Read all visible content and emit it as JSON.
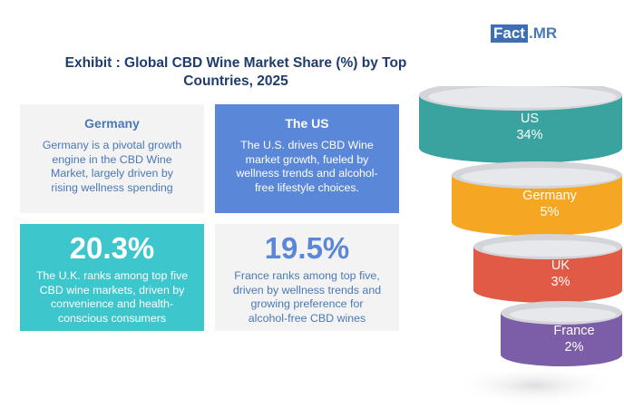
{
  "logo": {
    "part1": "Fact",
    "part2": ".MR"
  },
  "title_line1": "Exhibit : Global CBD Wine Market Share (%) by Top",
  "title_line2": "Countries, 2025",
  "cards": {
    "germany": {
      "heading": "Germany",
      "lines": [
        "Germany is a pivotal growth",
        "engine in the CBD Wine",
        "Market, largely driven by",
        "rising wellness spending"
      ]
    },
    "us": {
      "heading": "The US",
      "lines": [
        "The U.S. drives CBD Wine",
        "market growth, fueled by",
        "wellness trends and alcohol-",
        "free lifestyle choices."
      ]
    },
    "uk": {
      "value": "20.3%",
      "lines": [
        "The U.K. ranks among top five",
        "CBD wine markets, driven by",
        "convenience and health-",
        "conscious consumers"
      ]
    },
    "france": {
      "value": "19.5%",
      "lines": [
        "France ranks among top five,",
        "driven by wellness trends and",
        "growing preference for",
        "alcohol-free CBD wines"
      ]
    }
  },
  "chart_data": {
    "type": "funnel",
    "categories": [
      "US",
      "Germany",
      "UK",
      "France"
    ],
    "values": [
      34,
      5,
      3,
      2
    ],
    "value_labels": [
      "34%",
      "5%",
      "3%",
      "2%"
    ],
    "colors": [
      "#3aa39f",
      "#f5a623",
      "#e15a45",
      "#7b5ea7"
    ],
    "rim_color": "#d3d5d9"
  }
}
